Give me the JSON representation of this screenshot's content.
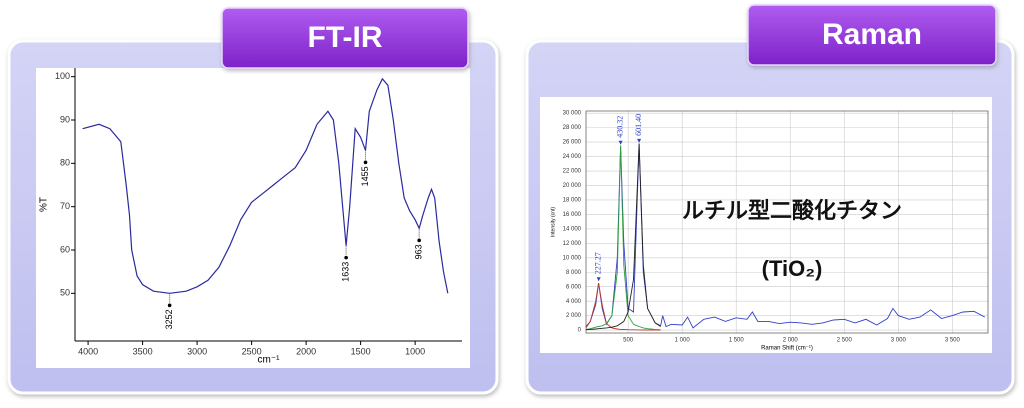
{
  "chart_data": [
    {
      "type": "line",
      "title": "FT-IR",
      "ylabel": "%T",
      "xlabel": "cm⁻¹",
      "xlim": [
        4120,
        570
      ],
      "xticks": [
        4000,
        3500,
        3000,
        2500,
        2000,
        1500,
        1000
      ],
      "ylim": [
        39,
        102
      ],
      "yticks": [
        50,
        60,
        70,
        80,
        90,
        100
      ],
      "grid": false,
      "x": [
        4050,
        3900,
        3800,
        3700,
        3650,
        3620,
        3600,
        3550,
        3500,
        3400,
        3252,
        3100,
        3000,
        2900,
        2800,
        2700,
        2600,
        2500,
        2400,
        2300,
        2200,
        2100,
        2000,
        1900,
        1800,
        1750,
        1700,
        1633,
        1600,
        1550,
        1500,
        1455,
        1420,
        1350,
        1300,
        1250,
        1200,
        1150,
        1100,
        1050,
        1000,
        963,
        930,
        880,
        850,
        820,
        780,
        740,
        700
      ],
      "series": [
        {
          "color": "#2a2aa0",
          "values": [
            88,
            89,
            88,
            85,
            75,
            68,
            60,
            54,
            52,
            50.5,
            50,
            50.5,
            51.5,
            53,
            56,
            61,
            67,
            71,
            73,
            75,
            77,
            79,
            83,
            89,
            92,
            90,
            80,
            61,
            70,
            88,
            86,
            83,
            92,
            97,
            99.5,
            98,
            90,
            80,
            72,
            69,
            67,
            65,
            68,
            72,
            74,
            72,
            62,
            55,
            50
          ]
        }
      ],
      "peak_labels": [
        3252,
        1633,
        1455,
        963
      ]
    },
    {
      "type": "line",
      "title": "Raman",
      "ylabel": "Intensity (cnt)",
      "xlabel": "Raman Shift (cm⁻¹)",
      "xlim": [
        110,
        3830
      ],
      "xticks": [
        500,
        {
          "value": 1000,
          "label": "1 000"
        },
        {
          "value": 1500,
          "label": "1 500"
        },
        {
          "value": 2000,
          "label": "2 000"
        },
        {
          "value": 2500,
          "label": "2 500"
        },
        {
          "value": 3000,
          "label": "3 000"
        },
        {
          "value": 3500,
          "label": "3 500"
        }
      ],
      "ylim": [
        -400,
        30300
      ],
      "yticks": [
        0,
        {
          "value": 2000,
          "label": "2 000"
        },
        {
          "value": 4000,
          "label": "4 000"
        },
        {
          "value": 6000,
          "label": "6 000"
        },
        {
          "value": 8000,
          "label": "8 000"
        },
        {
          "value": 10000,
          "label": "10 000"
        },
        {
          "value": 12000,
          "label": "12 000"
        },
        {
          "value": 14000,
          "label": "14 000"
        },
        {
          "value": 16000,
          "label": "16 000"
        },
        {
          "value": 18000,
          "label": "18 000"
        },
        {
          "value": 20000,
          "label": "20 000"
        },
        {
          "value": 22000,
          "label": "22 000"
        },
        {
          "value": 24000,
          "label": "24 000"
        },
        {
          "value": 26000,
          "label": "26 000"
        },
        {
          "value": 28000,
          "label": "28 000"
        },
        {
          "value": 30000,
          "label": "30 000"
        }
      ],
      "grid": true,
      "x": [
        110,
        150,
        200,
        227,
        260,
        300,
        350,
        400,
        430,
        460,
        500,
        550,
        601,
        640,
        680,
        750,
        800,
        820,
        850,
        900,
        1000,
        1050,
        1100,
        1200,
        1300,
        1400,
        1500,
        1600,
        1650,
        1700,
        1800,
        1900,
        2000,
        2100,
        2200,
        2300,
        2400,
        2500,
        2600,
        2700,
        2800,
        2900,
        2950,
        3000,
        3100,
        3200,
        3300,
        3400,
        3500,
        3600,
        3700,
        3800
      ],
      "series": [
        {
          "color": "#3040c8",
          "values": [
            500,
            1200,
            3500,
            6500,
            3000,
            800,
            2000,
            10000,
            25500,
            12000,
            3000,
            2500,
            25800,
            8000,
            3000,
            1000,
            600,
            2000,
            500,
            800,
            700,
            1800,
            300,
            1500,
            1800,
            1200,
            1700,
            1500,
            2500,
            1200,
            1200,
            900,
            1100,
            1000,
            800,
            1000,
            1400,
            1500,
            1000,
            1500,
            700,
            1600,
            3000,
            2000,
            1500,
            1800,
            2800,
            1600,
            2000,
            2500,
            2600,
            1800
          ]
        },
        {
          "color": "#c0392b",
          "values": [
            300,
            1200,
            4000,
            6500,
            3500,
            900,
            300,
            150,
            100,
            80,
            50,
            40,
            30,
            20,
            10,
            0,
            0,
            null,
            null,
            null,
            null,
            null,
            null,
            null,
            null,
            null,
            null,
            null,
            null,
            null,
            null,
            null,
            null,
            null,
            null,
            null,
            null,
            null,
            null,
            null,
            null,
            null,
            null,
            null,
            null,
            null,
            null,
            null,
            null,
            null,
            null,
            null
          ]
        },
        {
          "color": "#2e9e3e",
          "values": [
            100,
            200,
            400,
            500,
            600,
            900,
            2000,
            8000,
            25500,
            9000,
            2000,
            800,
            500,
            300,
            200,
            100,
            50,
            null,
            null,
            null,
            null,
            null,
            null,
            null,
            null,
            null,
            null,
            null,
            null,
            null,
            null,
            null,
            null,
            null,
            null,
            null,
            null,
            null,
            null,
            null,
            null,
            null,
            null,
            null,
            null,
            null,
            null,
            null,
            null,
            null,
            null,
            null
          ]
        },
        {
          "color": "#222222",
          "values": [
            50,
            100,
            150,
            200,
            250,
            300,
            400,
            600,
            900,
            1200,
            2500,
            7000,
            25800,
            9000,
            3000,
            1000,
            500,
            null,
            null,
            null,
            null,
            null,
            null,
            null,
            null,
            null,
            null,
            null,
            null,
            null,
            null,
            null,
            null,
            null,
            null,
            null,
            null,
            null,
            null,
            null,
            null,
            null,
            null,
            null,
            null,
            null,
            null,
            null,
            null,
            null,
            null,
            null
          ]
        }
      ],
      "peak_labels": [
        {
          "value": 227.27,
          "label": "227.27"
        },
        {
          "value": 430.32,
          "label": "430.32"
        },
        {
          "value": 601.4,
          "label": "601.40"
        }
      ],
      "notes": [
        "ルチル型二酸化チタン",
        "(TiO₂)"
      ]
    }
  ]
}
